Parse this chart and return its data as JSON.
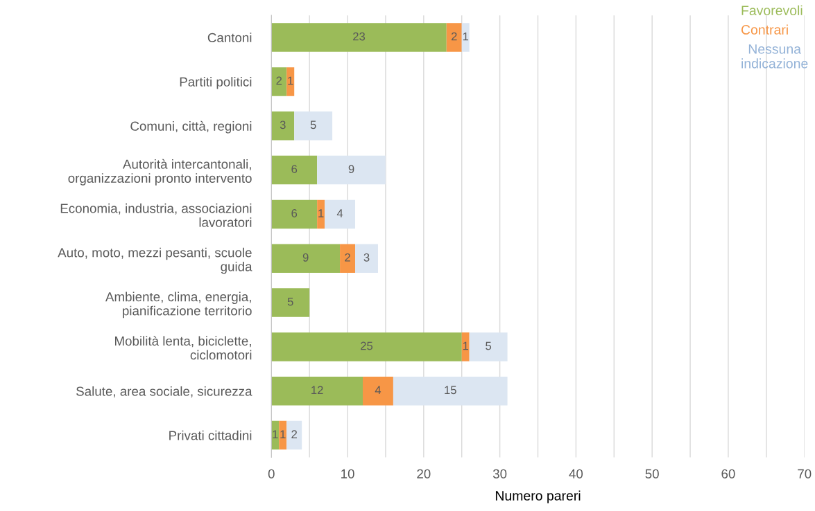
{
  "chart_data": {
    "type": "bar",
    "orientation": "horizontal",
    "stacked": true,
    "xlabel": "Numero pareri",
    "categories": [
      "Cantoni",
      "Partiti politici",
      "Comuni, città, regioni",
      "Autorità intercantonali,\norganizzazioni pronto intervento",
      "Economia, industria, associazioni\nlavoratori",
      "Auto, moto, mezzi pesanti, scuole\nguida",
      "Ambiente, clima, energia,\npianificazione territorio",
      "Mobilità lenta, biciclette,\nciclomotori",
      "Salute, area sociale, sicurezza",
      "Privati cittadini"
    ],
    "series": [
      {
        "name": "Favorevoli",
        "color": "#9bbb59",
        "values": [
          23,
          2,
          3,
          6,
          6,
          9,
          5,
          25,
          12,
          1
        ]
      },
      {
        "name": "Contrari",
        "color": "#f79646",
        "values": [
          2,
          1,
          null,
          null,
          1,
          2,
          null,
          1,
          4,
          1
        ]
      },
      {
        "name": "Nessuna\nindicazione",
        "color": "#dce6f2",
        "values": [
          1,
          null,
          5,
          9,
          4,
          3,
          null,
          5,
          15,
          2
        ]
      }
    ],
    "xlim": [
      0,
      70
    ],
    "xticks": [
      0,
      {
        "value": 5,
        "label": null
      },
      10,
      {
        "value": 15,
        "label": null
      },
      20,
      {
        "value": 25,
        "label": null
      },
      30,
      {
        "value": 35,
        "label": null
      },
      40,
      {
        "value": 45,
        "label": null
      },
      50,
      {
        "value": 55,
        "label": null
      },
      60,
      {
        "value": 65,
        "label": null
      },
      70
    ],
    "grid": "x",
    "data_labels": true,
    "legend": "top right"
  }
}
